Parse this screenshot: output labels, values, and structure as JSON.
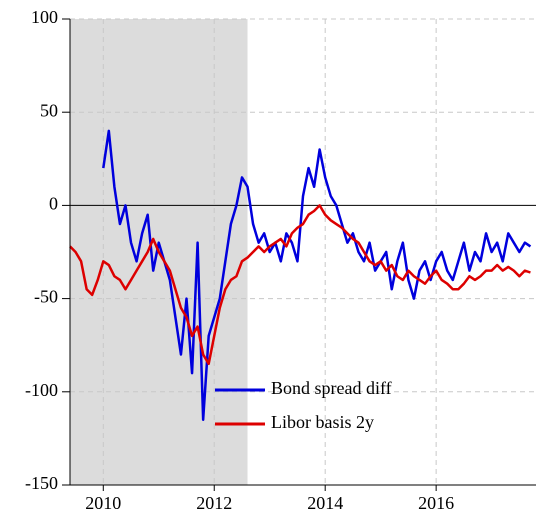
{
  "chart_data": {
    "type": "line",
    "x": [
      2009.4,
      2009.5,
      2009.6,
      2009.7,
      2009.8,
      2009.9,
      2010.0,
      2010.1,
      2010.2,
      2010.3,
      2010.4,
      2010.5,
      2010.6,
      2010.7,
      2010.8,
      2010.9,
      2011.0,
      2011.1,
      2011.2,
      2011.3,
      2011.4,
      2011.5,
      2011.6,
      2011.7,
      2011.8,
      2011.9,
      2012.0,
      2012.1,
      2012.2,
      2012.3,
      2012.4,
      2012.5,
      2012.6,
      2012.7,
      2012.8,
      2012.9,
      2013.0,
      2013.1,
      2013.2,
      2013.3,
      2013.4,
      2013.5,
      2013.6,
      2013.7,
      2013.8,
      2013.9,
      2014.0,
      2014.1,
      2014.2,
      2014.3,
      2014.4,
      2014.5,
      2014.6,
      2014.7,
      2014.8,
      2014.9,
      2015.0,
      2015.1,
      2015.2,
      2015.3,
      2015.4,
      2015.5,
      2015.6,
      2015.7,
      2015.8,
      2015.9,
      2016.0,
      2016.1,
      2016.2,
      2016.3,
      2016.4,
      2016.5,
      2016.6,
      2016.7,
      2016.8,
      2016.9,
      2017.0,
      2017.1,
      2017.2,
      2017.3,
      2017.4,
      2017.5,
      2017.6,
      2017.7
    ],
    "series": [
      {
        "name": "Bond spread diff",
        "color": "#0000dd",
        "values": [
          null,
          null,
          null,
          null,
          null,
          null,
          20,
          40,
          10,
          -10,
          0,
          -20,
          -30,
          -15,
          -5,
          -35,
          -20,
          -30,
          -40,
          -60,
          -80,
          -50,
          -90,
          -20,
          -115,
          -70,
          -60,
          -50,
          -30,
          -10,
          0,
          15,
          10,
          -10,
          -20,
          -15,
          -25,
          -20,
          -30,
          -15,
          -20,
          -30,
          5,
          20,
          10,
          30,
          15,
          5,
          0,
          -10,
          -20,
          -15,
          -25,
          -30,
          -20,
          -35,
          -30,
          -25,
          -45,
          -30,
          -20,
          -40,
          -50,
          -35,
          -30,
          -40,
          -30,
          -25,
          -35,
          -40,
          -30,
          -20,
          -35,
          -25,
          -30,
          -15,
          -25,
          -20,
          -30,
          -15,
          -20,
          -25,
          -20,
          -22
        ]
      },
      {
        "name": "Libor basis 2y",
        "color": "#dd0000",
        "values": [
          -22,
          -25,
          -30,
          -45,
          -48,
          -40,
          -30,
          -32,
          -38,
          -40,
          -45,
          -40,
          -35,
          -30,
          -25,
          -18,
          -25,
          -30,
          -35,
          -45,
          -55,
          -60,
          -70,
          -65,
          -80,
          -85,
          -70,
          -55,
          -45,
          -40,
          -38,
          -30,
          -28,
          -25,
          -22,
          -25,
          -22,
          -20,
          -18,
          -22,
          -15,
          -12,
          -10,
          -5,
          -3,
          0,
          -5,
          -8,
          -10,
          -12,
          -15,
          -18,
          -20,
          -25,
          -30,
          -32,
          -30,
          -35,
          -32,
          -38,
          -40,
          -35,
          -38,
          -40,
          -42,
          -38,
          -35,
          -40,
          -42,
          -45,
          -45,
          -42,
          -38,
          -40,
          -38,
          -35,
          -35,
          -32,
          -35,
          -33,
          -35,
          -38,
          -35,
          -36
        ]
      }
    ],
    "xlim": [
      2009.4,
      2017.8
    ],
    "xticks": [
      2010,
      2012,
      2014,
      2016
    ],
    "ylim": [
      -150,
      100
    ],
    "yticks": [
      -150,
      -100,
      -50,
      0,
      50,
      100
    ],
    "shaded": [
      2009.4,
      2012.6
    ],
    "zero_line": true,
    "grid": true,
    "legend": "lower center"
  }
}
